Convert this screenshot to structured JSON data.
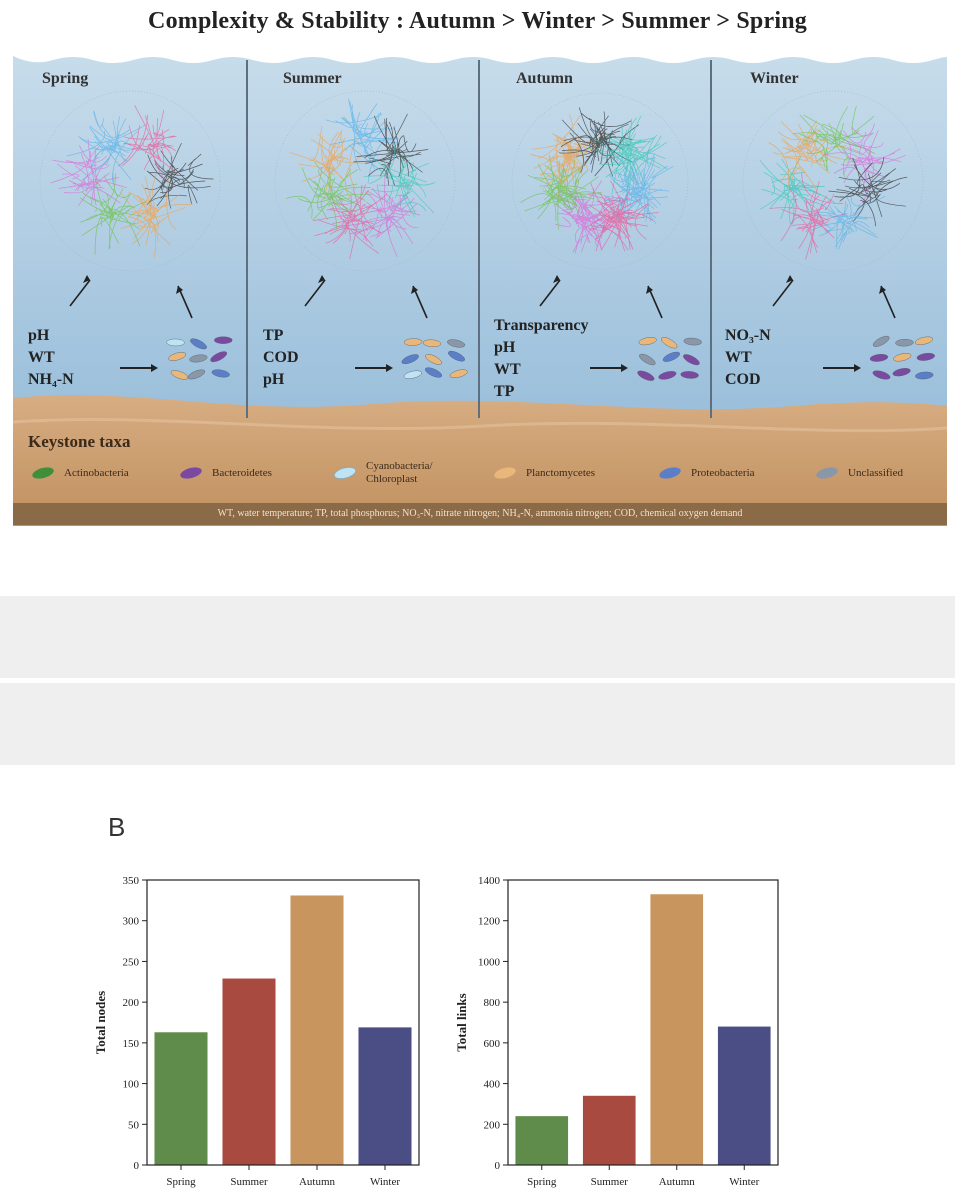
{
  "figure": {
    "title": "Complexity & Stability : Autumn > Winter > Summer > Spring",
    "panels": [
      {
        "label": "Spring",
        "drivers": [
          "pH",
          "WT",
          "NH₄-N"
        ],
        "palette": [
          "#333333",
          "#f0a04b",
          "#6cc24a",
          "#d86ed8",
          "#5bb3e8",
          "#e85c9b"
        ]
      },
      {
        "label": "Summer",
        "drivers": [
          "TP",
          "COD",
          "pH"
        ],
        "palette": [
          "#d86ed8",
          "#e85c9b",
          "#6cc24a",
          "#f0a04b",
          "#5bb3e8",
          "#333333",
          "#3cc7b5"
        ]
      },
      {
        "label": "Autumn",
        "drivers": [
          "Transparency",
          "pH",
          "WT",
          "TP"
        ],
        "palette": [
          "#d86ed8",
          "#6cc24a",
          "#f0a04b",
          "#333333",
          "#3cc7b5",
          "#5bb3e8",
          "#e85c9b"
        ]
      },
      {
        "label": "Winter",
        "drivers": [
          "NO₃-N",
          "WT",
          "COD"
        ],
        "palette": [
          "#3cc7b5",
          "#f0a04b",
          "#6cc24a",
          "#d86ed8",
          "#333333",
          "#5bb3e8",
          "#e85c9b"
        ]
      }
    ],
    "keystone": {
      "title": "Keystone taxa",
      "items": [
        {
          "label": "Actinobacteria",
          "icon": "bacterium-icon",
          "color": "#3f8f3a"
        },
        {
          "label": "Bacteroidetes",
          "icon": "bacterium-icon",
          "color": "#7a4aa0"
        },
        {
          "label": "Cyanobacteria/ Chloroplast",
          "icon": "bacterium-icon",
          "color": "#bfe3f2"
        },
        {
          "label": "Planctomycetes",
          "icon": "bacterium-icon",
          "color": "#e9b77a"
        },
        {
          "label": "Proteobacteria",
          "icon": "bacterium-icon",
          "color": "#5a7fc8"
        },
        {
          "label": "Unclassified",
          "icon": "bacterium-icon",
          "color": "#8a97a8"
        }
      ]
    },
    "abbreviations": "WT, water temperature; TP, total phosphorus; NO₃-N, nitrate nitrogen; NH₄-N, ammonia nitrogen; COD, chemical oxygen demand"
  },
  "panel_b_label": "B",
  "colors": {
    "Spring": "#5f8c4a",
    "Summer": "#a84a3f",
    "Autumn": "#c8955f",
    "Winter": "#4a4e84"
  },
  "chart_data": [
    {
      "type": "bar",
      "categories": [
        "Spring",
        "Summer",
        "Autumn",
        "Winter"
      ],
      "values": [
        163,
        229,
        331,
        169
      ],
      "ylabel": "Total nodes",
      "xlabel": "",
      "ylim": [
        0,
        350
      ],
      "yticks": [
        0,
        50,
        100,
        150,
        200,
        250,
        300,
        350
      ]
    },
    {
      "type": "bar",
      "categories": [
        "Spring",
        "Summer",
        "Autumn",
        "Winter"
      ],
      "values": [
        240,
        340,
        1330,
        680
      ],
      "ylabel": "Total links",
      "xlabel": "",
      "ylim": [
        0,
        1400
      ],
      "yticks": [
        0,
        200,
        400,
        600,
        800,
        1000,
        1200,
        1400
      ]
    }
  ]
}
